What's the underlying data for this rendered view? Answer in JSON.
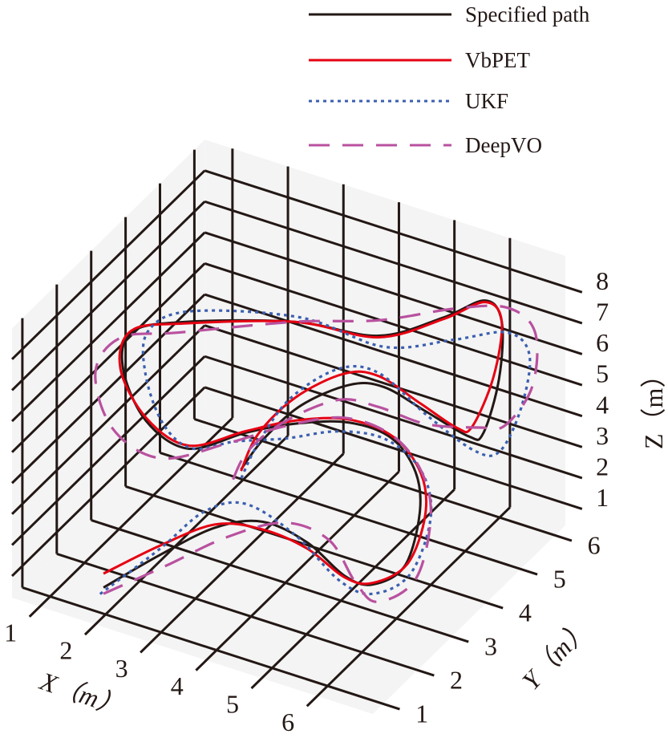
{
  "chart_data": {
    "type": "line3d",
    "title": "",
    "xlabel": "X（m）",
    "ylabel": "Y（m）",
    "zlabel": "Z（m）",
    "xlim": [
      0.5,
      7.0
    ],
    "ylim": [
      0.7,
      6.3
    ],
    "zlim": [
      0.3,
      9.0
    ],
    "xticks": [
      "1",
      "2",
      "3",
      "4",
      "5",
      "6"
    ],
    "yticks": [
      "1",
      "2",
      "3",
      "4",
      "5",
      "6"
    ],
    "zticks": [
      "1",
      "2",
      "3",
      "4",
      "5",
      "6",
      "7",
      "8"
    ],
    "grid": true,
    "legend_position": "top-right",
    "colors": {
      "pane": "#f4f4f4",
      "grid": "#231815"
    },
    "series": [
      {
        "name": "Specified path",
        "color": "#231815",
        "style": "solid",
        "points": [
          [
            1.9,
            1.1,
            1.0
          ],
          [
            2.3,
            2.1,
            1.2
          ],
          [
            2.8,
            2.9,
            1.5
          ],
          [
            3.4,
            3.3,
            1.6
          ],
          [
            4.2,
            3.3,
            1.4
          ],
          [
            5.0,
            3.1,
            1.0
          ],
          [
            5.5,
            3.1,
            1.0
          ],
          [
            5.9,
            3.4,
            1.5
          ],
          [
            5.8,
            4.0,
            2.5
          ],
          [
            5.6,
            4.2,
            3.5
          ],
          [
            5.1,
            4.3,
            4.2
          ],
          [
            4.4,
            4.2,
            4.4
          ],
          [
            3.7,
            3.8,
            4.4
          ],
          [
            3.1,
            3.3,
            4.3
          ],
          [
            2.5,
            2.6,
            4.2
          ],
          [
            1.8,
            2.5,
            4.8
          ],
          [
            1.2,
            2.8,
            5.8
          ],
          [
            1.1,
            3.2,
            6.5
          ],
          [
            1.8,
            3.6,
            6.8
          ],
          [
            3.3,
            4.4,
            6.8
          ],
          [
            4.5,
            4.9,
            6.5
          ],
          [
            5.3,
            5.5,
            6.9
          ],
          [
            5.8,
            5.9,
            7.3
          ],
          [
            6.1,
            5.9,
            6.8
          ],
          [
            6.3,
            5.5,
            5.5
          ],
          [
            6.2,
            5.2,
            4.0
          ],
          [
            6.0,
            5.1,
            3.9
          ],
          [
            5.3,
            5.0,
            4.4
          ],
          [
            4.6,
            4.9,
            4.9
          ],
          [
            4.1,
            4.7,
            4.9
          ],
          [
            3.6,
            4.1,
            4.6
          ],
          [
            3.3,
            3.5,
            4.0
          ],
          [
            3.2,
            3.0,
            3.5
          ]
        ]
      },
      {
        "name": "VbPET",
        "color": "#e60012",
        "style": "solid",
        "points": [
          [
            1.9,
            1.1,
            1.45
          ],
          [
            2.3,
            2.1,
            1.5
          ],
          [
            2.8,
            2.9,
            1.6
          ],
          [
            3.4,
            3.3,
            1.35
          ],
          [
            4.2,
            3.3,
            1.2
          ],
          [
            5.0,
            3.1,
            0.95
          ],
          [
            5.5,
            3.1,
            1.05
          ],
          [
            5.95,
            3.4,
            1.6
          ],
          [
            5.9,
            4.0,
            2.5
          ],
          [
            5.7,
            4.2,
            3.5
          ],
          [
            5.15,
            4.3,
            4.25
          ],
          [
            4.4,
            4.2,
            4.5
          ],
          [
            3.7,
            3.8,
            4.5
          ],
          [
            3.1,
            3.3,
            4.35
          ],
          [
            2.5,
            2.6,
            4.3
          ],
          [
            1.8,
            2.5,
            4.9
          ],
          [
            1.15,
            2.8,
            5.8
          ],
          [
            1.1,
            3.2,
            6.55
          ],
          [
            1.8,
            3.6,
            6.75
          ],
          [
            3.3,
            4.4,
            6.8
          ],
          [
            4.5,
            4.9,
            6.45
          ],
          [
            5.3,
            5.5,
            6.85
          ],
          [
            5.8,
            5.9,
            7.25
          ],
          [
            6.1,
            5.9,
            6.8
          ],
          [
            6.2,
            5.5,
            5.5
          ],
          [
            6.0,
            5.2,
            4.1
          ],
          [
            5.8,
            5.1,
            4.05
          ],
          [
            5.2,
            5.0,
            4.6
          ],
          [
            4.5,
            4.9,
            5.2
          ],
          [
            4.0,
            4.7,
            5.2
          ],
          [
            3.5,
            4.1,
            4.8
          ],
          [
            3.2,
            3.5,
            4.1
          ],
          [
            3.2,
            3.0,
            3.45
          ]
        ]
      },
      {
        "name": "UKF",
        "color": "#3b5fb0",
        "style": "dotted",
        "points": [
          [
            1.9,
            1.0,
            0.9
          ],
          [
            2.3,
            2.1,
            1.4
          ],
          [
            2.6,
            2.9,
            1.9
          ],
          [
            3.1,
            3.3,
            2.0
          ],
          [
            4.0,
            3.3,
            1.5
          ],
          [
            4.9,
            3.1,
            0.8
          ],
          [
            5.5,
            3.1,
            0.7
          ],
          [
            6.0,
            3.4,
            1.3
          ],
          [
            6.0,
            4.0,
            2.5
          ],
          [
            5.7,
            4.2,
            3.6
          ],
          [
            5.0,
            4.3,
            4.1
          ],
          [
            4.2,
            4.2,
            4.0
          ],
          [
            3.5,
            3.8,
            3.8
          ],
          [
            2.9,
            3.3,
            3.9
          ],
          [
            2.5,
            2.7,
            4.1
          ],
          [
            2.1,
            2.5,
            4.9
          ],
          [
            1.6,
            2.8,
            5.9
          ],
          [
            1.4,
            3.2,
            6.7
          ],
          [
            1.9,
            3.6,
            7.2
          ],
          [
            3.4,
            4.4,
            7.0
          ],
          [
            4.6,
            4.9,
            6.2
          ],
          [
            5.5,
            5.5,
            6.3
          ],
          [
            6.2,
            5.9,
            6.5
          ],
          [
            6.6,
            5.9,
            6.0
          ],
          [
            6.7,
            5.5,
            4.8
          ],
          [
            6.5,
            5.2,
            3.6
          ],
          [
            6.1,
            5.1,
            3.5
          ],
          [
            5.3,
            5.0,
            4.3
          ],
          [
            4.5,
            4.9,
            5.3
          ],
          [
            3.9,
            4.7,
            5.3
          ],
          [
            3.4,
            4.1,
            4.7
          ],
          [
            3.2,
            3.5,
            3.8
          ],
          [
            3.2,
            3.0,
            3.2
          ]
        ]
      },
      {
        "name": "DeepVO",
        "color": "#b9519f",
        "style": "dashed",
        "points": [
          [
            1.9,
            1.1,
            0.8
          ],
          [
            2.4,
            2.1,
            0.9
          ],
          [
            3.0,
            2.9,
            1.3
          ],
          [
            3.8,
            3.3,
            1.8
          ],
          [
            4.6,
            3.3,
            1.7
          ],
          [
            5.2,
            3.1,
            0.9
          ],
          [
            5.6,
            3.1,
            0.5
          ],
          [
            6.1,
            3.4,
            1.2
          ],
          [
            6.0,
            4.0,
            2.5
          ],
          [
            5.7,
            4.2,
            3.6
          ],
          [
            5.1,
            4.3,
            4.3
          ],
          [
            4.3,
            4.2,
            4.5
          ],
          [
            3.5,
            3.8,
            4.2
          ],
          [
            2.8,
            3.3,
            3.8
          ],
          [
            2.0,
            2.6,
            3.6
          ],
          [
            1.2,
            2.5,
            4.2
          ],
          [
            0.7,
            2.8,
            5.4
          ],
          [
            0.9,
            3.2,
            6.2
          ],
          [
            1.7,
            3.6,
            6.4
          ],
          [
            3.3,
            4.4,
            6.8
          ],
          [
            4.5,
            4.9,
            7.0
          ],
          [
            5.5,
            5.5,
            7.3
          ],
          [
            6.2,
            5.9,
            7.3
          ],
          [
            6.7,
            5.9,
            6.8
          ],
          [
            6.9,
            5.5,
            5.6
          ],
          [
            6.6,
            5.2,
            4.5
          ],
          [
            6.2,
            5.1,
            4.3
          ],
          [
            5.3,
            5.0,
            4.0
          ],
          [
            4.5,
            4.9,
            4.2
          ],
          [
            3.9,
            4.7,
            4.3
          ],
          [
            3.3,
            4.1,
            3.9
          ],
          [
            3.0,
            3.5,
            3.4
          ],
          [
            3.0,
            3.0,
            2.8
          ]
        ]
      }
    ]
  }
}
